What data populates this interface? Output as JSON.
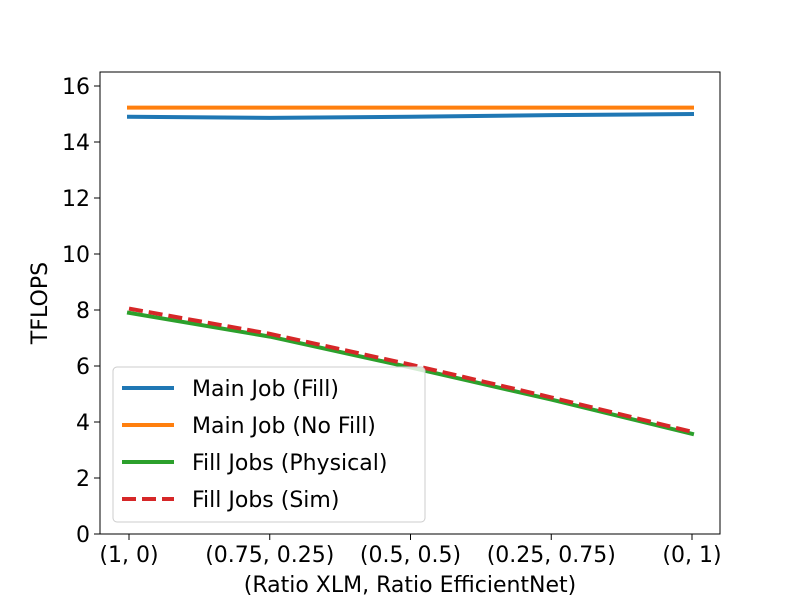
{
  "chart_data": {
    "type": "line",
    "title": "",
    "xlabel": "(Ratio XLM, Ratio EfficientNet)",
    "ylabel": "TFLOPS",
    "categories": [
      "(1, 0)",
      "(0.75, 0.25)",
      "(0.5, 0.5)",
      "(0.25, 0.75)",
      "(0, 1)"
    ],
    "ylim": [
      0,
      16.5
    ],
    "yticks": [
      0,
      2,
      4,
      6,
      8,
      10,
      12,
      14,
      16
    ],
    "grid": false,
    "legend_position": "lower-left",
    "series": [
      {
        "name": "Main Job (Fill)",
        "values": [
          14.9,
          14.86,
          14.9,
          14.96,
          15.0
        ],
        "color": "#1f77b4",
        "dash": "solid"
      },
      {
        "name": "Main Job (No Fill)",
        "values": [
          15.23,
          15.23,
          15.23,
          15.23,
          15.23
        ],
        "color": "#ff7f0e",
        "dash": "solid"
      },
      {
        "name": "Fill Jobs (Physical)",
        "values": [
          7.9,
          7.05,
          5.95,
          4.8,
          3.58
        ],
        "color": "#2ca02c",
        "dash": "solid"
      },
      {
        "name": "Fill Jobs (Sim)",
        "values": [
          8.05,
          7.15,
          6.05,
          4.88,
          3.65
        ],
        "color": "#d62728",
        "dash": "dashed"
      }
    ]
  }
}
